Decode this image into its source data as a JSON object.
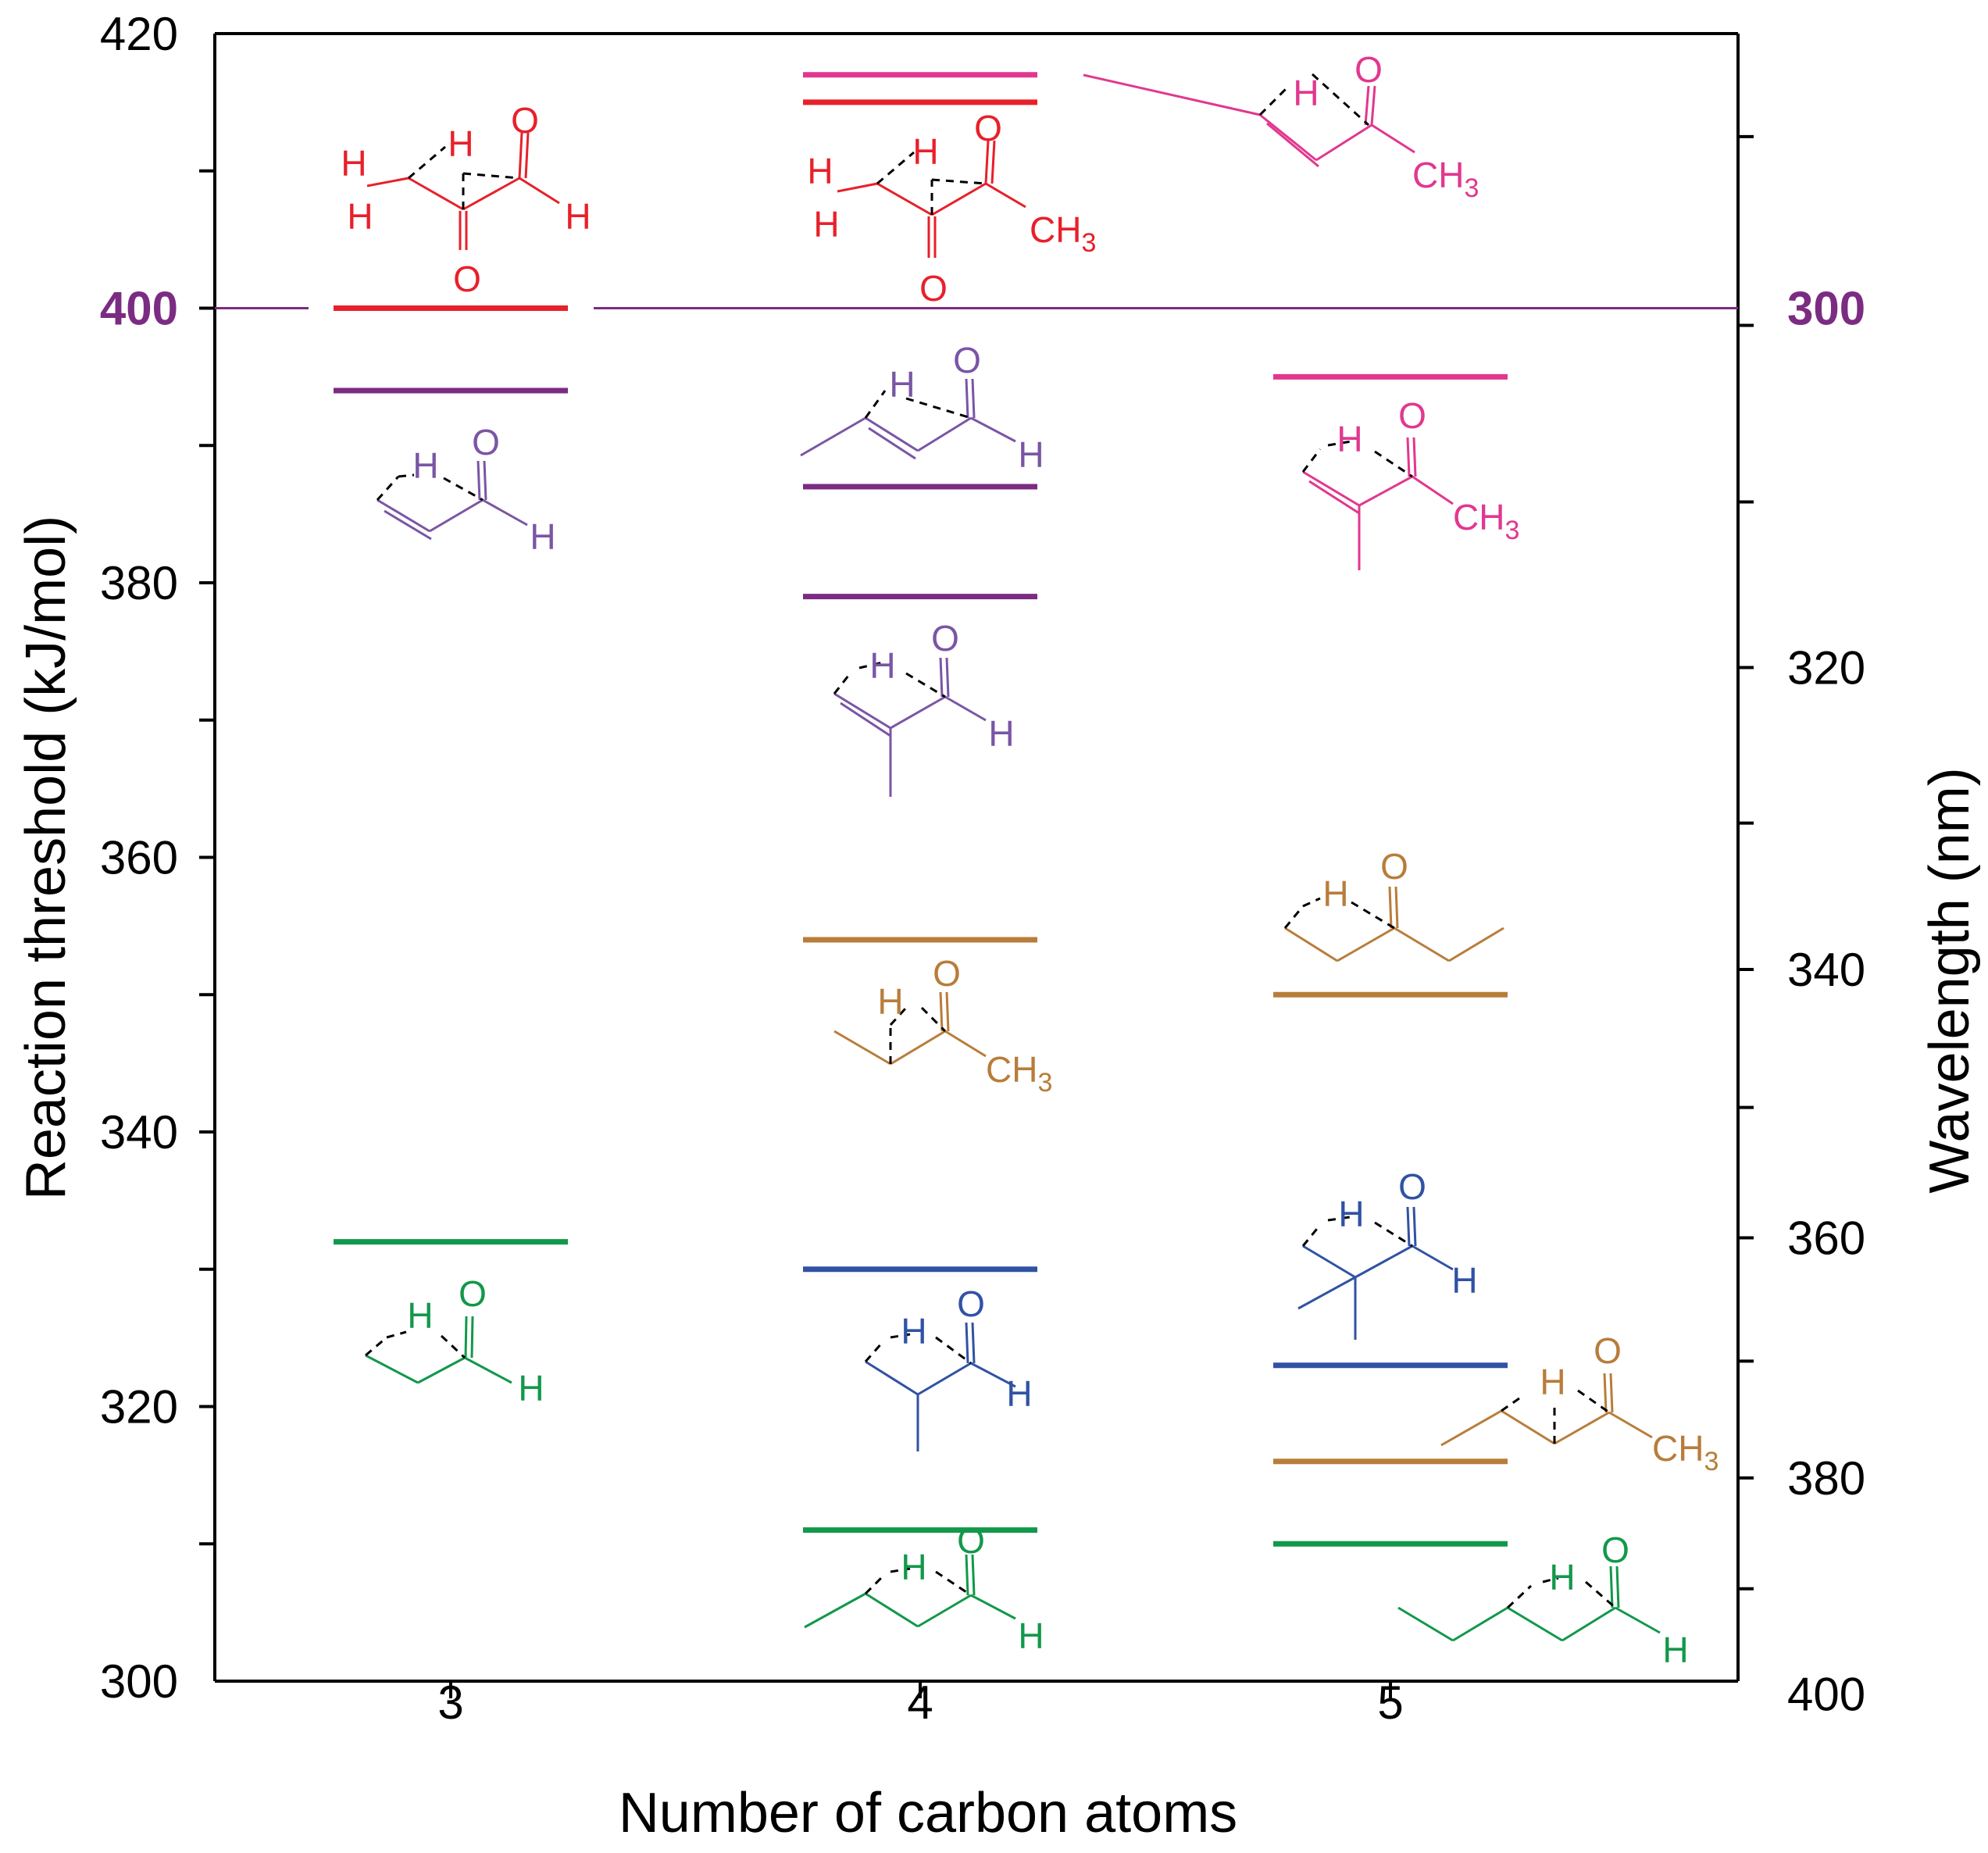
{
  "chart_data": {
    "type": "scatter",
    "xlabel": "Number of carbon atoms",
    "ylabel": "Reaction threshold (kJ/mol)",
    "y2label": "Wavelength (nm)",
    "x_ticks": [
      "3",
      "4",
      "5"
    ],
    "y_ticks": [
      "300",
      "320",
      "340",
      "360",
      "380",
      "400",
      "420"
    ],
    "y2_ticks": [
      "320",
      "340",
      "360",
      "380",
      "400"
    ],
    "ylim": [
      300,
      420
    ],
    "reference_line": {
      "y": 400,
      "left_label": "400",
      "right_label": "300",
      "color": "#7B2C82"
    },
    "colors": {
      "red": "#E8202A",
      "magenta": "#E2378F",
      "purple": "#7B2C82",
      "lavender": "#7A55A5",
      "brown": "#B87D3A",
      "blue": "#3152A4",
      "green": "#12984A"
    },
    "series": [
      {
        "points": [
          {
            "x": 3,
            "y": 400,
            "color": "red"
          },
          {
            "x": 3,
            "y": 394,
            "color": "purple"
          },
          {
            "x": 3,
            "y": 332,
            "color": "green"
          }
        ]
      },
      {
        "points": [
          {
            "x": 4,
            "y": 417,
            "color": "magenta"
          },
          {
            "x": 4,
            "y": 415,
            "color": "red"
          },
          {
            "x": 4,
            "y": 387,
            "color": "purple"
          },
          {
            "x": 4,
            "y": 379,
            "color": "purple"
          },
          {
            "x": 4,
            "y": 354,
            "color": "brown"
          },
          {
            "x": 4,
            "y": 330,
            "color": "blue"
          },
          {
            "x": 4,
            "y": 311,
            "color": "green"
          }
        ]
      },
      {
        "points": [
          {
            "x": 5,
            "y": 395,
            "color": "magenta"
          },
          {
            "x": 5,
            "y": 350,
            "color": "brown"
          },
          {
            "x": 5,
            "y": 323,
            "color": "blue"
          },
          {
            "x": 5,
            "y": 316,
            "color": "brown"
          },
          {
            "x": 5,
            "y": 310,
            "color": "green"
          }
        ]
      }
    ],
    "molecule_labels": {
      "h": "H",
      "o": "O",
      "ch3_base": "CH",
      "ch3_sub": "3"
    }
  }
}
